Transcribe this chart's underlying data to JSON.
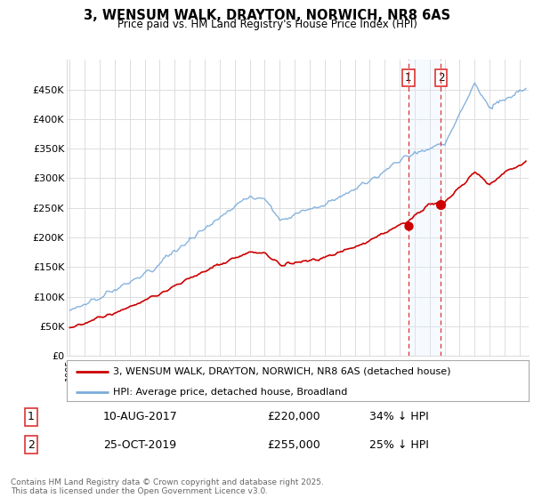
{
  "title": "3, WENSUM WALK, DRAYTON, NORWICH, NR8 6AS",
  "subtitle": "Price paid vs. HM Land Registry's House Price Index (HPI)",
  "legend_line1": "3, WENSUM WALK, DRAYTON, NORWICH, NR8 6AS (detached house)",
  "legend_line2": "HPI: Average price, detached house, Broadland",
  "transaction1_date": "10-AUG-2017",
  "transaction1_price": 220000,
  "transaction1_label": "34% ↓ HPI",
  "transaction2_date": "25-OCT-2019",
  "transaction2_price": 255000,
  "transaction2_label": "25% ↓ HPI",
  "footnote": "Contains HM Land Registry data © Crown copyright and database right 2025.\nThis data is licensed under the Open Government Licence v3.0.",
  "ylim": [
    0,
    500000
  ],
  "hpi_color": "#7aabdb",
  "price_color": "#cc0000",
  "dot_color": "#cc0000",
  "vline_color": "#dd3333",
  "span_color": "#ddeeff",
  "background_color": "#ffffff",
  "grid_color": "#dddddd"
}
